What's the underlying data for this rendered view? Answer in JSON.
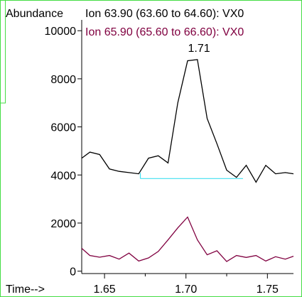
{
  "chart_data": {
    "type": "line",
    "y_axis_label": "Abundance",
    "x_axis_label": "Time-->",
    "yticks": [
      0,
      2000,
      4000,
      6000,
      8000,
      10000
    ],
    "xticks": [
      1.65,
      1.7,
      1.75
    ],
    "xtick_labels": [
      "1.65",
      "1.70",
      "1.75"
    ],
    "xlim": [
      1.636,
      1.766
    ],
    "ylim": [
      -100,
      10450
    ],
    "grid": false,
    "series": [
      {
        "name": "Ion 63.90 (63.60 to 64.60): VX0",
        "color": "#000000",
        "x": [
          1.636,
          1.641,
          1.647,
          1.653,
          1.659,
          1.665,
          1.671,
          1.677,
          1.683,
          1.689,
          1.695,
          1.701,
          1.707,
          1.713,
          1.719,
          1.725,
          1.731,
          1.737,
          1.743,
          1.749,
          1.755,
          1.761,
          1.766
        ],
        "y": [
          4700,
          4950,
          4850,
          4250,
          4150,
          4100,
          4050,
          4700,
          4800,
          4500,
          7000,
          8750,
          8800,
          6350,
          5300,
          4200,
          3900,
          4400,
          3700,
          4400,
          4050,
          4100,
          4050
        ]
      },
      {
        "name": "Ion 65.90 (65.60 to 66.60): VX0",
        "color": "#800040",
        "x": [
          1.636,
          1.641,
          1.647,
          1.653,
          1.659,
          1.665,
          1.671,
          1.677,
          1.683,
          1.689,
          1.695,
          1.701,
          1.707,
          1.713,
          1.719,
          1.725,
          1.731,
          1.737,
          1.743,
          1.749,
          1.755,
          1.761,
          1.766
        ],
        "y": [
          950,
          650,
          580,
          650,
          500,
          750,
          420,
          550,
          820,
          1300,
          1800,
          2250,
          1300,
          680,
          850,
          400,
          650,
          570,
          650,
          420,
          600,
          500,
          620
        ]
      }
    ],
    "annotations": [
      {
        "text": "1.71",
        "x": 1.708,
        "y": 9000
      }
    ],
    "baseline": {
      "x1": 1.672,
      "x2": 1.735,
      "y": 3850,
      "color": "#40e0f0"
    }
  }
}
